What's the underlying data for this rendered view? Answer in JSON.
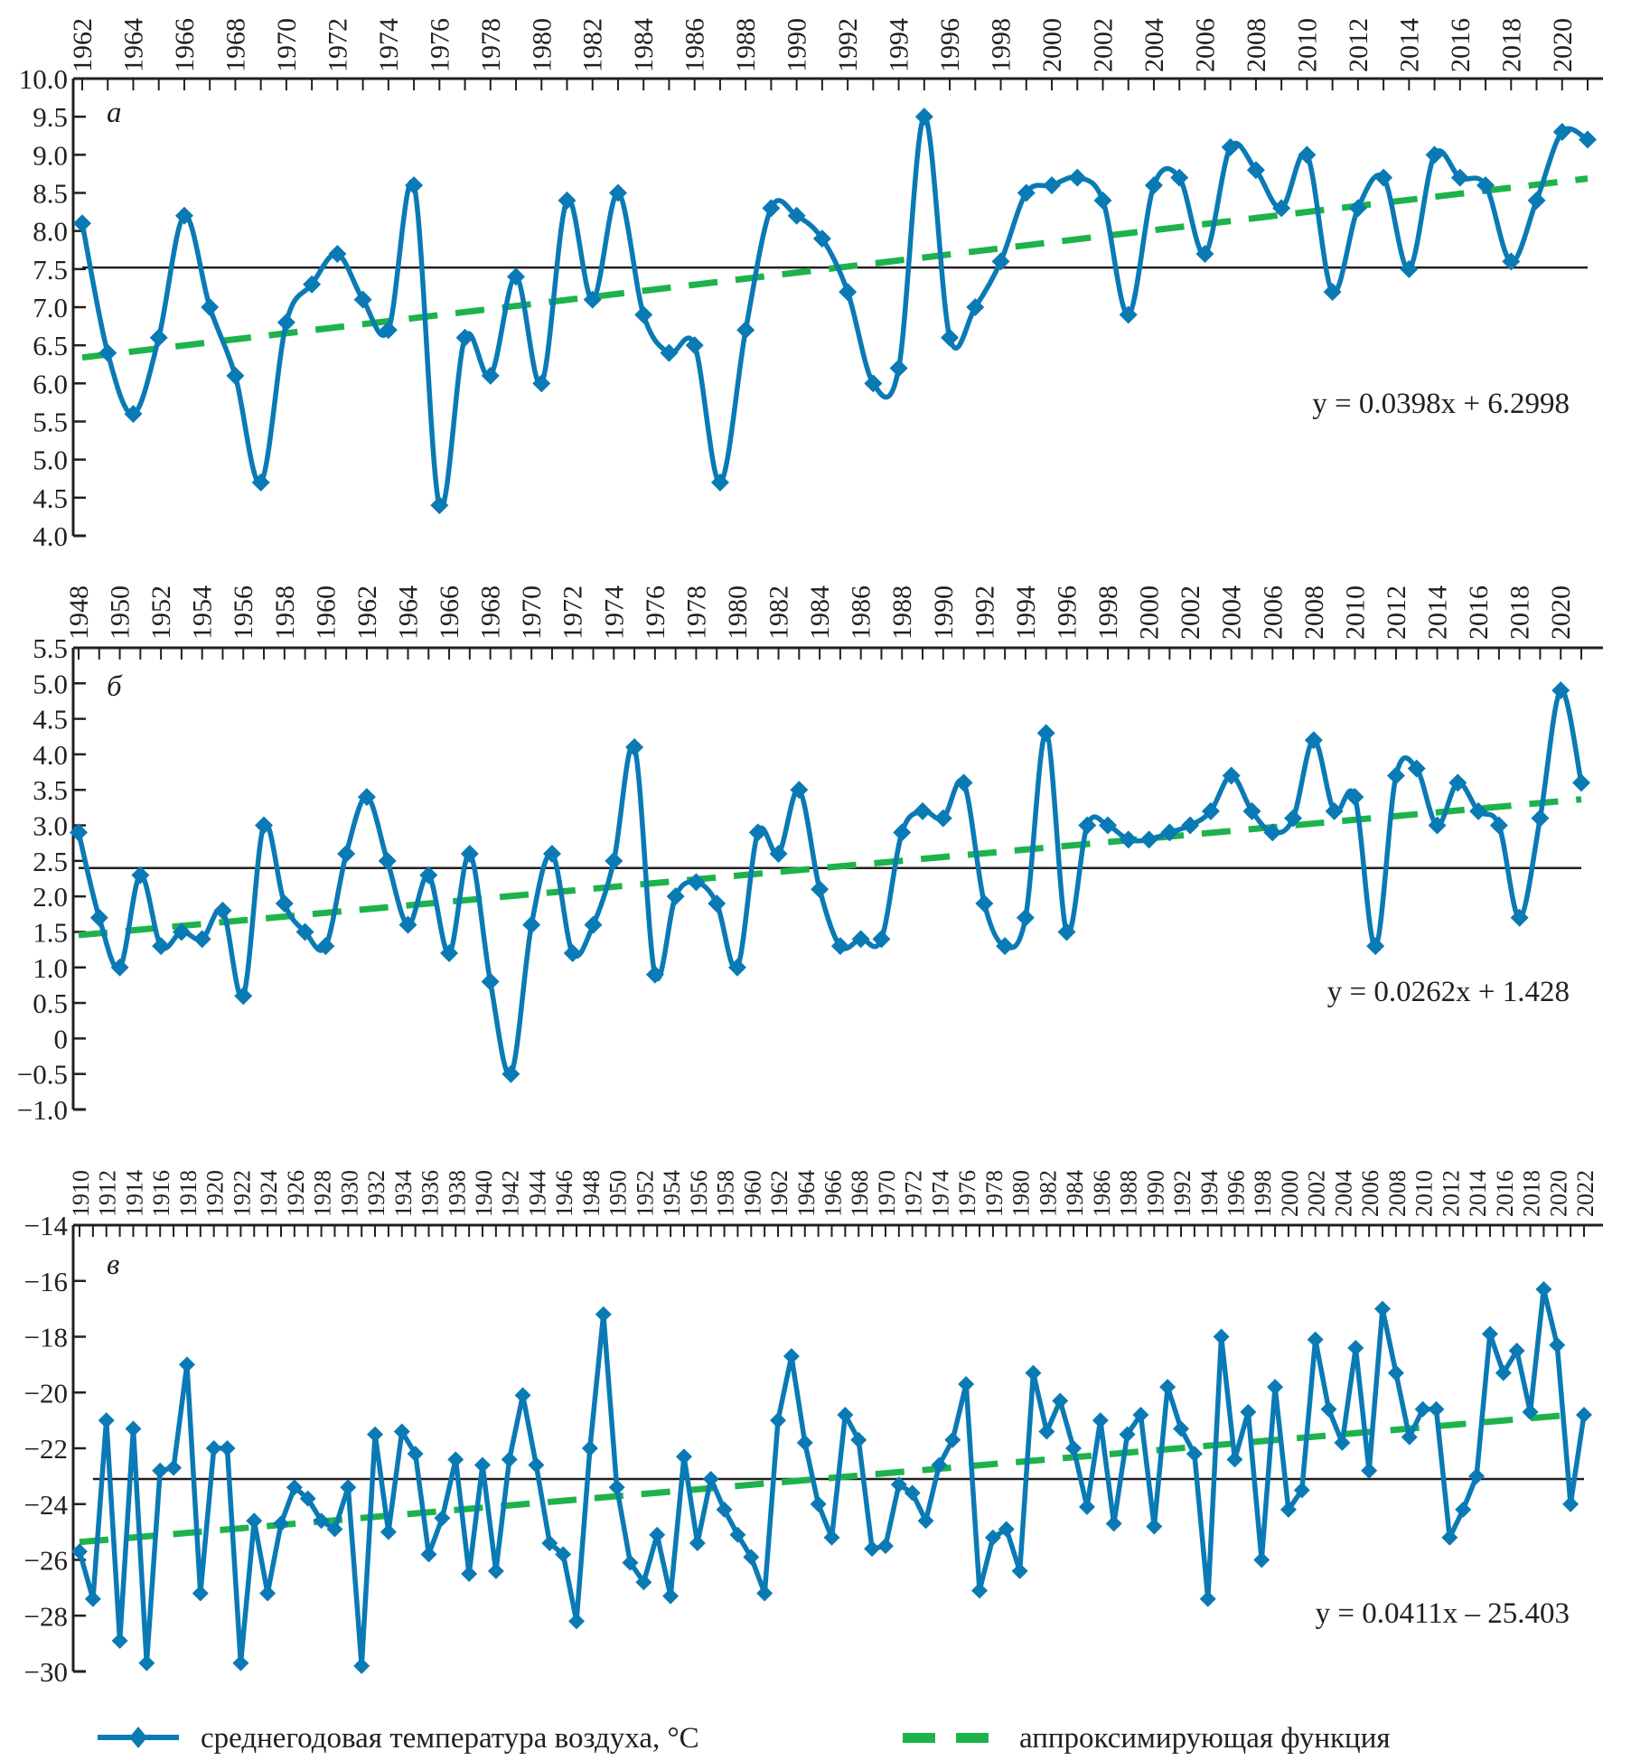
{
  "colors": {
    "series": "#0a7ab5",
    "trend": "#1db34a",
    "reference": "#231f20",
    "axis": "#231f20"
  },
  "legend": {
    "series_label": "среднегодовая температура воздуха, °С",
    "trend_label": "аппроксимирующая функция",
    "series_icon": "line-with-diamond-marker",
    "trend_icon": "green-dashed-line"
  },
  "chart_data": [
    {
      "type": "line",
      "panel_label": "а",
      "x_ticks": [
        "1962",
        "1964",
        "1966",
        "1968",
        "1970",
        "1972",
        "1974",
        "1976",
        "1978",
        "1980",
        "1982",
        "1984",
        "1986",
        "1988",
        "1990",
        "1992",
        "1994",
        "1996",
        "1998",
        "2000",
        "2002",
        "2004",
        "2006",
        "2008",
        "2010",
        "2012",
        "2014",
        "2016",
        "2018",
        "2020"
      ],
      "y_ticks": [
        "10.0",
        "9.5",
        "9.0",
        "8.5",
        "8.0",
        "7.5",
        "7.0",
        "6.5",
        "6.0",
        "5.5",
        "5.0",
        "4.5",
        "4.0"
      ],
      "ylim": [
        4.0,
        10.0
      ],
      "x": [
        1962,
        1963,
        1964,
        1965,
        1966,
        1967,
        1968,
        1969,
        1970,
        1971,
        1972,
        1973,
        1974,
        1975,
        1976,
        1977,
        1978,
        1979,
        1980,
        1981,
        1982,
        1983,
        1984,
        1985,
        1986,
        1987,
        1988,
        1989,
        1990,
        1991,
        1992,
        1993,
        1994,
        1995,
        1996,
        1997,
        1998,
        1999,
        2000,
        2001,
        2002,
        2003,
        2004,
        2005,
        2006,
        2007,
        2008,
        2009,
        2010,
        2011,
        2012,
        2013,
        2014,
        2015,
        2016,
        2017,
        2018,
        2019,
        2020,
        2021
      ],
      "values": [
        8.1,
        6.4,
        5.6,
        6.6,
        8.2,
        7.0,
        6.1,
        4.7,
        6.8,
        7.3,
        7.7,
        7.1,
        6.7,
        8.6,
        4.4,
        6.6,
        6.1,
        7.4,
        6.0,
        8.4,
        7.1,
        8.5,
        6.9,
        6.4,
        6.5,
        4.7,
        6.7,
        8.3,
        8.2,
        7.9,
        7.2,
        6.0,
        6.2,
        9.5,
        6.6,
        7.0,
        7.6,
        8.5,
        8.6,
        8.7,
        8.4,
        6.9,
        8.6,
        8.7,
        7.7,
        9.1,
        8.8,
        8.3,
        9.0,
        7.2,
        8.3,
        8.7,
        7.5,
        9.0,
        8.7,
        8.6,
        7.6,
        8.4,
        9.3,
        9.2
      ],
      "mean_line": 7.52,
      "trend": {
        "slope": 0.0398,
        "intercept": 6.2998,
        "equation": "y = 0.0398x + 6.2998"
      },
      "grid": false
    },
    {
      "type": "line",
      "panel_label": "б",
      "x_ticks": [
        "1948",
        "1950",
        "1952",
        "1954",
        "1956",
        "1958",
        "1960",
        "1962",
        "1964",
        "1966",
        "1968",
        "1970",
        "1972",
        "1974",
        "1976",
        "1978",
        "1980",
        "1982",
        "1984",
        "1986",
        "1988",
        "1990",
        "1992",
        "1994",
        "1996",
        "1998",
        "2000",
        "2002",
        "2004",
        "2006",
        "2008",
        "2010",
        "2012",
        "2014",
        "2016",
        "2018",
        "2020"
      ],
      "y_ticks": [
        "5.5",
        "5.0",
        "4.5",
        "4.0",
        "3.5",
        "3.0",
        "2.5",
        "2.0",
        "1.5",
        "1.0",
        "0.5",
        "0",
        "−0.5",
        "−1.0"
      ],
      "ylim": [
        -1.0,
        5.5
      ],
      "x": [
        1948,
        1949,
        1950,
        1951,
        1952,
        1953,
        1954,
        1955,
        1956,
        1957,
        1958,
        1959,
        1960,
        1961,
        1962,
        1963,
        1964,
        1965,
        1966,
        1967,
        1968,
        1969,
        1970,
        1971,
        1972,
        1973,
        1974,
        1975,
        1976,
        1977,
        1978,
        1979,
        1980,
        1981,
        1982,
        1983,
        1984,
        1985,
        1986,
        1987,
        1988,
        1989,
        1990,
        1991,
        1992,
        1993,
        1994,
        1995,
        1996,
        1997,
        1998,
        1999,
        2000,
        2001,
        2002,
        2003,
        2004,
        2005,
        2006,
        2007,
        2008,
        2009,
        2010,
        2011,
        2012,
        2013,
        2014,
        2015,
        2016,
        2017,
        2018,
        2019,
        2020,
        2021
      ],
      "values": [
        2.9,
        1.7,
        1.0,
        2.3,
        1.3,
        1.5,
        1.4,
        1.8,
        0.6,
        3.0,
        1.9,
        1.5,
        1.3,
        2.6,
        3.4,
        2.5,
        1.6,
        2.3,
        1.2,
        2.6,
        0.8,
        -0.5,
        1.6,
        2.6,
        1.2,
        1.6,
        2.5,
        4.1,
        0.9,
        2.0,
        2.2,
        1.9,
        1.0,
        2.9,
        2.6,
        3.5,
        2.1,
        1.3,
        1.4,
        1.4,
        2.9,
        3.2,
        3.1,
        3.6,
        1.9,
        1.3,
        1.7,
        4.3,
        1.5,
        3.0,
        3.0,
        2.8,
        2.8,
        2.9,
        3.0,
        3.2,
        3.7,
        3.2,
        2.9,
        3.1,
        4.2,
        3.2,
        3.4,
        1.3,
        3.7,
        3.8,
        3.0,
        3.6,
        3.2,
        3.0,
        1.7,
        3.1,
        4.9,
        3.6
      ],
      "mean_line": 2.4,
      "trend": {
        "slope": 0.0262,
        "intercept": 1.428,
        "equation": "y = 0.0262x + 1.428"
      },
      "grid": false
    },
    {
      "type": "line",
      "panel_label": "в",
      "x_ticks": [
        "1910",
        "1912",
        "1914",
        "1916",
        "1918",
        "1920",
        "1922",
        "1924",
        "1926",
        "1928",
        "1930",
        "1932",
        "1934",
        "1936",
        "1938",
        "1940",
        "1942",
        "1944",
        "1946",
        "1948",
        "1950",
        "1952",
        "1954",
        "1956",
        "1958",
        "1960",
        "1962",
        "1964",
        "1966",
        "1968",
        "1970",
        "1972",
        "1974",
        "1976",
        "1978",
        "1980",
        "1982",
        "1984",
        "1986",
        "1988",
        "1990",
        "1992",
        "1994",
        "1996",
        "1998",
        "2000",
        "2002",
        "2004",
        "2006",
        "2008",
        "2010",
        "2012",
        "2014",
        "2016",
        "2018",
        "2020",
        "2022"
      ],
      "y_ticks": [
        "−14",
        "−16",
        "−18",
        "−20",
        "−22",
        "−24",
        "−26",
        "−28",
        "−30"
      ],
      "ylim": [
        -30,
        -14
      ],
      "x": [
        1910,
        1911,
        1912,
        1913,
        1914,
        1915,
        1916,
        1917,
        1918,
        1919,
        1920,
        1921,
        1922,
        1923,
        1924,
        1925,
        1926,
        1927,
        1928,
        1929,
        1930,
        1931,
        1932,
        1933,
        1934,
        1935,
        1936,
        1937,
        1938,
        1939,
        1940,
        1941,
        1942,
        1943,
        1944,
        1945,
        1946,
        1947,
        1948,
        1949,
        1950,
        1951,
        1952,
        1953,
        1954,
        1955,
        1956,
        1957,
        1958,
        1959,
        1960,
        1961,
        1962,
        1963,
        1964,
        1965,
        1966,
        1967,
        1968,
        1969,
        1970,
        1971,
        1972,
        1973,
        1974,
        1975,
        1976,
        1977,
        1978,
        1979,
        1980,
        1981,
        1982,
        1983,
        1984,
        1985,
        1986,
        1987,
        1988,
        1989,
        1990,
        1991,
        1992,
        1993,
        1994,
        1995,
        1996,
        1997,
        1998,
        1999,
        2000,
        2001,
        2002,
        2003,
        2004,
        2005,
        2006,
        2007,
        2008,
        2009,
        2010,
        2011,
        2012,
        2013,
        2014,
        2015,
        2016,
        2017,
        2018,
        2019,
        2020,
        2021,
        2022
      ],
      "values": [
        -25.7,
        -27.4,
        -21.0,
        -28.9,
        -21.3,
        -29.7,
        -22.8,
        -22.7,
        -19.0,
        -27.2,
        -22.0,
        -22.0,
        -29.7,
        -24.6,
        -27.2,
        -24.7,
        -23.4,
        -23.8,
        -24.6,
        -24.9,
        -23.4,
        -29.8,
        -21.5,
        -25.0,
        -21.4,
        -22.2,
        -25.8,
        -24.5,
        -22.4,
        -26.5,
        -22.6,
        -26.4,
        -22.4,
        -20.1,
        -22.6,
        -25.4,
        -25.8,
        -28.2,
        -22.0,
        -17.2,
        -23.4,
        -26.1,
        -26.8,
        -25.1,
        -27.3,
        -22.3,
        -25.4,
        -23.1,
        -24.2,
        -25.1,
        -25.9,
        -27.2,
        -21.0,
        -18.7,
        -21.8,
        -24.0,
        -25.2,
        -20.8,
        -21.7,
        -25.6,
        -25.5,
        -23.3,
        -23.6,
        -24.6,
        -22.6,
        -21.7,
        -19.7,
        -27.1,
        -25.2,
        -24.9,
        -26.4,
        -19.3,
        -21.4,
        -20.3,
        -22.0,
        -24.1,
        -21.0,
        -24.7,
        -21.5,
        -20.8,
        -24.8,
        -19.8,
        -21.3,
        -22.2,
        -27.4,
        -18.0,
        -22.4,
        -20.7,
        -26.0,
        -19.8,
        -24.2,
        -23.5,
        -18.1,
        -20.6,
        -21.8,
        -18.4,
        -22.8,
        -17.0,
        -19.3,
        -21.6,
        -20.6,
        -20.6,
        -25.2,
        -24.2,
        -23.0,
        -17.9,
        -19.3,
        -18.5,
        -20.7,
        -16.3,
        -18.3,
        -24.0,
        -20.8
      ],
      "mean_line": -23.1,
      "trend": {
        "slope": 0.0411,
        "intercept": -25.403,
        "equation": "y = 0.0411x – 25.403"
      },
      "grid": false
    }
  ]
}
